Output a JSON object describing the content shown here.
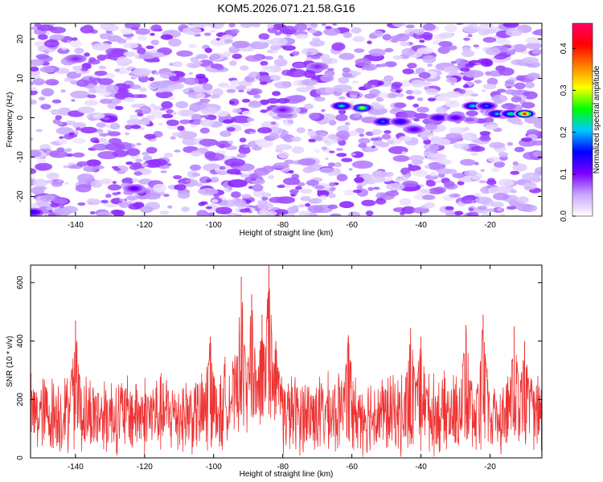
{
  "chart_data": [
    {
      "type": "heatmap",
      "title": "KOM5.2026.071.21.58.G16",
      "xlabel": "Height of straight line (km)",
      "ylabel": "Frequency (Hz)",
      "xlim": [
        -153,
        -5
      ],
      "ylim": [
        -25,
        24
      ],
      "xticks": [
        -140,
        -120,
        -100,
        -80,
        -60,
        -40,
        -20
      ],
      "yticks": [
        -20,
        -10,
        0,
        10,
        20
      ],
      "colorbar": {
        "label": "Normalized spectral amplitude",
        "range": [
          0.0,
          0.46
        ],
        "ticks": [
          0.0,
          0.1,
          0.2,
          0.3,
          0.4
        ],
        "colors": [
          "#ffffff",
          "#c8a8ff",
          "#7a00ff",
          "#0000ff",
          "#00c8ff",
          "#00ff00",
          "#ffff00",
          "#ff8000",
          "#ff0000",
          "#ff0066"
        ]
      },
      "background_level": 0.06,
      "hotspots": [
        {
          "x": -63,
          "y": 3,
          "value": 0.22
        },
        {
          "x": -57,
          "y": 2.5,
          "value": 0.3
        },
        {
          "x": -51,
          "y": -1,
          "value": 0.18
        },
        {
          "x": -46,
          "y": -1,
          "value": 0.15
        },
        {
          "x": -42,
          "y": -3,
          "value": 0.12
        },
        {
          "x": -35,
          "y": 0,
          "value": 0.14
        },
        {
          "x": -30,
          "y": 0,
          "value": 0.12
        },
        {
          "x": -25,
          "y": 3,
          "value": 0.22
        },
        {
          "x": -21,
          "y": 3,
          "value": 0.18
        },
        {
          "x": -18,
          "y": 1,
          "value": 0.2
        },
        {
          "x": -14,
          "y": 1,
          "value": 0.24
        },
        {
          "x": -10,
          "y": 1,
          "value": 0.4
        },
        {
          "x": -123,
          "y": -18,
          "value": 0.12
        },
        {
          "x": -152,
          "y": -24,
          "value": 0.14
        },
        {
          "x": -80,
          "y": 2,
          "value": 0.1
        },
        {
          "x": -70,
          "y": 13,
          "value": 0.09
        },
        {
          "x": -140,
          "y": 15,
          "value": 0.09
        }
      ],
      "grid": false,
      "legend": "colorbar-right"
    },
    {
      "type": "line",
      "xlabel": "Height of straight line (km)",
      "ylabel": "SNR (10 * v/v)",
      "xlim": [
        -153,
        -5
      ],
      "ylim": [
        0,
        660
      ],
      "xticks": [
        -140,
        -120,
        -100,
        -80,
        -60,
        -40,
        -20
      ],
      "yticks": [
        0,
        200,
        400,
        600
      ],
      "color": "#ee3333",
      "baseline": 150,
      "amplitude": 140,
      "peaks": [
        {
          "x": -140,
          "y": 470
        },
        {
          "x": -101,
          "y": 415
        },
        {
          "x": -92,
          "y": 620
        },
        {
          "x": -89,
          "y": 560
        },
        {
          "x": -86,
          "y": 490
        },
        {
          "x": -84,
          "y": 660
        },
        {
          "x": -82,
          "y": 400
        },
        {
          "x": -61,
          "y": 420
        },
        {
          "x": -43,
          "y": 445
        },
        {
          "x": -40,
          "y": 415
        },
        {
          "x": -27,
          "y": 455
        },
        {
          "x": -22,
          "y": 490
        },
        {
          "x": -13,
          "y": 450
        },
        {
          "x": -10,
          "y": 400
        }
      ],
      "grid": false
    }
  ]
}
